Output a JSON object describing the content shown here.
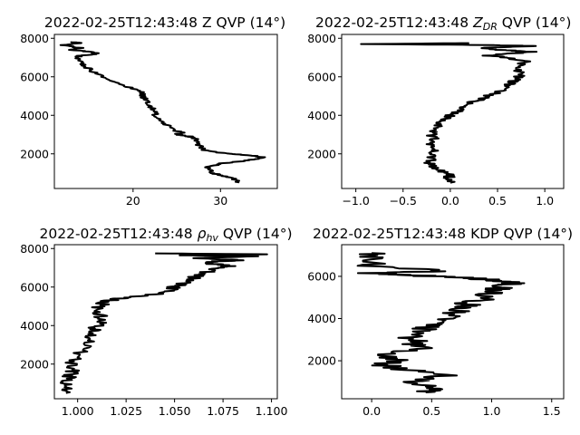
{
  "chart_data": [
    {
      "type": "line",
      "title_main": "2022-02-25T12:43:48 Z QVP (14°)",
      "xlim": [
        11,
        36.5
      ],
      "ylim": [
        200,
        8200
      ],
      "xticks": [
        20,
        30
      ],
      "xtick_labels": [
        "20",
        "30"
      ],
      "yticks": [
        2000,
        4000,
        6000,
        8000
      ],
      "ytick_labels": [
        "2000",
        "4000",
        "6000",
        "8000"
      ],
      "jitter": 0.4,
      "series": [
        {
          "x": [
            32,
            31.5,
            30,
            29,
            28.5,
            30,
            33,
            35,
            34,
            31,
            28,
            27.5,
            27,
            26.5,
            25,
            25.5,
            24.5,
            23.5,
            22.5,
            22.5,
            22,
            21.5,
            21,
            21,
            20,
            18,
            16,
            15,
            14,
            13.5,
            14,
            16,
            15,
            13,
            14,
            12,
            14,
            13
          ],
          "y": [
            500,
            700,
            900,
            1000,
            1300,
            1500,
            1650,
            1800,
            1900,
            2000,
            2200,
            2500,
            2800,
            2900,
            3000,
            3100,
            3300,
            3600,
            4000,
            4200,
            4500,
            4800,
            5000,
            5200,
            5400,
            5700,
            6100,
            6400,
            6700,
            7000,
            7100,
            7200,
            7300,
            7400,
            7500,
            7650,
            7750,
            7800
          ]
        }
      ]
    },
    {
      "type": "line",
      "title_main": "2022-02-25T12:43:48 ",
      "title_sym": "Z",
      "title_sub": "DR",
      "title_rest": " QVP (14°)",
      "xlim": [
        -1.15,
        1.2
      ],
      "ylim": [
        200,
        8200
      ],
      "xticks": [
        -1.0,
        -0.5,
        0.0,
        0.5,
        1.0
      ],
      "xtick_labels": [
        "−1.0",
        "−0.5",
        "0.0",
        "0.5",
        "1.0"
      ],
      "yticks": [
        2000,
        4000,
        6000,
        8000
      ],
      "ytick_labels": [
        "2000",
        "4000",
        "6000",
        "8000"
      ],
      "jitter": 0.06,
      "series": [
        {
          "x": [
            0.0,
            -0.02,
            0.0,
            -0.1,
            -0.2,
            -0.22,
            -0.2,
            -0.18,
            -0.22,
            -0.18,
            -0.2,
            -0.15,
            -0.1,
            0.0,
            0.1,
            0.2,
            0.3,
            0.4,
            0.5,
            0.6,
            0.65,
            0.7,
            0.75,
            0.7,
            0.8,
            0.6,
            0.4,
            0.6,
            0.9,
            0.5,
            0.3,
            0.9,
            0.4,
            -0.9,
            0.2
          ],
          "y": [
            500,
            700,
            900,
            1100,
            1300,
            1600,
            1900,
            2200,
            2500,
            2800,
            3100,
            3400,
            3700,
            4000,
            4300,
            4600,
            4800,
            5000,
            5200,
            5500,
            5700,
            5900,
            6200,
            6500,
            6800,
            7000,
            7100,
            7200,
            7300,
            7400,
            7500,
            7600,
            7650,
            7700,
            7750
          ]
        }
      ]
    },
    {
      "type": "line",
      "title_main": "2022-02-25T12:43:48 ",
      "title_sym": "ρ",
      "title_sub": "hv",
      "title_rest": " QVP (14°)",
      "xlim": [
        0.988,
        1.103
      ],
      "ylim": [
        200,
        8200
      ],
      "xticks": [
        1.0,
        1.025,
        1.05,
        1.075,
        1.1
      ],
      "xtick_labels": [
        "1.000",
        "1.025",
        "1.050",
        "1.075",
        "1.100"
      ],
      "yticks": [
        2000,
        4000,
        6000,
        8000
      ],
      "ytick_labels": [
        "2000",
        "4000",
        "6000",
        "8000"
      ],
      "jitter": 0.004,
      "series": [
        {
          "x": [
            0.994,
            0.994,
            0.995,
            0.996,
            0.997,
            0.998,
            1.003,
            1.007,
            1.008,
            1.01,
            1.012,
            1.01,
            1.013,
            1.02,
            1.03,
            1.045,
            1.05,
            1.055,
            1.06,
            1.065,
            1.07,
            1.075,
            1.08,
            1.07,
            1.065,
            1.085,
            1.06,
            1.09,
            1.055,
            1.098,
            1.04
          ],
          "y": [
            500,
            800,
            1100,
            1400,
            1700,
            2200,
            2800,
            3300,
            3700,
            4000,
            4400,
            4800,
            5200,
            5400,
            5500,
            5700,
            6000,
            6200,
            6500,
            6700,
            6900,
            7000,
            7100,
            7200,
            7300,
            7400,
            7500,
            7600,
            7650,
            7700,
            7750
          ]
        }
      ]
    },
    {
      "type": "line",
      "title_main": "2022-02-25T12:43:48 KDP QVP (14°)",
      "xlim": [
        -0.25,
        1.6
      ],
      "ylim": [
        200,
        7500
      ],
      "xticks": [
        0.0,
        0.5,
        1.0,
        1.5
      ],
      "xtick_labels": [
        "0.0",
        "0.5",
        "1.0",
        "1.5"
      ],
      "yticks": [
        2000,
        4000,
        6000
      ],
      "ytick_labels": [
        "2000",
        "4000",
        "6000"
      ],
      "jitter": 0.12,
      "series": [
        {
          "x": [
            0.45,
            0.5,
            0.3,
            0.6,
            0.25,
            0.1,
            0.2,
            0.15,
            0.4,
            0.35,
            0.3,
            0.45,
            0.5,
            0.6,
            0.7,
            0.75,
            0.8,
            0.9,
            1.0,
            1.05,
            1.1,
            1.2,
            1.0,
            0.9,
            0.5,
            0.2,
            0.0,
            0.6,
            0.0,
            0.0,
            0.0
          ],
          "y": [
            500,
            700,
            1000,
            1300,
            1600,
            1800,
            2000,
            2300,
            2600,
            2900,
            3200,
            3500,
            3700,
            4000,
            4300,
            4500,
            4700,
            4900,
            5200,
            5400,
            5600,
            5700,
            5800,
            5900,
            6000,
            6100,
            6150,
            6250,
            6500,
            6900,
            7100
          ]
        }
      ]
    }
  ]
}
